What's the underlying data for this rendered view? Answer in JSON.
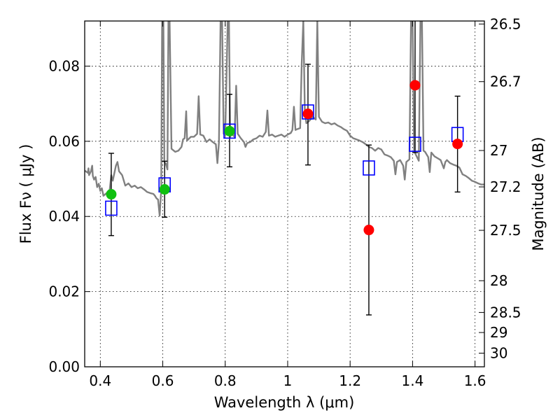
{
  "chart_data": {
    "type": "scatter",
    "title": "",
    "xlabel": "Wavelength  λ (μm)",
    "ylabel": "Flux  Fν  ( μJy )",
    "y2label": "Magnitude (AB)",
    "xlim": [
      0.35,
      1.63
    ],
    "ylim": [
      0.0,
      0.092
    ],
    "x_ticks": [
      0.4,
      0.6,
      0.8,
      1,
      1.2,
      1.4,
      1.6
    ],
    "x_tick_labels": [
      "0.4",
      "0.6",
      "0.8",
      "1",
      "1.2",
      "1.4",
      "1.6"
    ],
    "y_ticks": [
      0.0,
      0.02,
      0.04,
      0.06,
      0.08
    ],
    "y_tick_labels": [
      "0.00",
      "0.02",
      "0.04",
      "0.06",
      "0.08"
    ],
    "mag_ticks": [
      26.5,
      26.7,
      27,
      27.2,
      27.5,
      28,
      28.5,
      29,
      30
    ],
    "mag_tick_labels": [
      "26.5",
      "26.7",
      "27",
      "27.2",
      "27.5",
      "28",
      "28.5",
      "29",
      "30"
    ],
    "grid": true,
    "colors": {
      "model": "#808080",
      "observed_green": "#10c010",
      "observed_red": "#ff0000",
      "model_photometry": "#0000ff",
      "errorbar": "#000000"
    },
    "observed_points": [
      {
        "x": 0.435,
        "y": 0.0459,
        "yerr_low": 0.0349,
        "yerr_high": 0.0568,
        "color": "green"
      },
      {
        "x": 0.606,
        "y": 0.0472,
        "yerr_low": 0.0398,
        "yerr_high": 0.0547,
        "color": "green"
      },
      {
        "x": 0.814,
        "y": 0.0627,
        "yerr_low": 0.0532,
        "yerr_high": 0.0725,
        "color": "green"
      },
      {
        "x": 1.065,
        "y": 0.0673,
        "yerr_low": 0.0537,
        "yerr_high": 0.0805,
        "color": "red"
      },
      {
        "x": 1.26,
        "y": 0.0364,
        "yerr_low": 0.0138,
        "yerr_high": 0.059,
        "color": "red"
      },
      {
        "x": 1.408,
        "y": 0.0749,
        "yerr_low": 0.057,
        "yerr_high": 0.095,
        "color": "red"
      },
      {
        "x": 1.544,
        "y": 0.0593,
        "yerr_low": 0.0465,
        "yerr_high": 0.072,
        "color": "red"
      }
    ],
    "model_photometry": [
      {
        "x": 0.435,
        "y": 0.0422
      },
      {
        "x": 0.606,
        "y": 0.0484
      },
      {
        "x": 0.814,
        "y": 0.0627
      },
      {
        "x": 1.065,
        "y": 0.0678
      },
      {
        "x": 1.26,
        "y": 0.0529
      },
      {
        "x": 1.408,
        "y": 0.0592
      },
      {
        "x": 1.544,
        "y": 0.0618
      }
    ],
    "model_spectrum": [
      [
        0.35,
        0.0522
      ],
      [
        0.36,
        0.0516
      ],
      [
        0.362,
        0.0528
      ],
      [
        0.364,
        0.051
      ],
      [
        0.37,
        0.052
      ],
      [
        0.374,
        0.0535
      ],
      [
        0.376,
        0.0508
      ],
      [
        0.38,
        0.0498
      ],
      [
        0.385,
        0.0505
      ],
      [
        0.39,
        0.0478
      ],
      [
        0.395,
        0.0487
      ],
      [
        0.4,
        0.0468
      ],
      [
        0.405,
        0.0475
      ],
      [
        0.41,
        0.0455
      ],
      [
        0.42,
        0.0462
      ],
      [
        0.425,
        0.0453
      ],
      [
        0.43,
        0.047
      ],
      [
        0.435,
        0.051
      ],
      [
        0.44,
        0.0495
      ],
      [
        0.45,
        0.0535
      ],
      [
        0.455,
        0.0545
      ],
      [
        0.46,
        0.052
      ],
      [
        0.47,
        0.051
      ],
      [
        0.48,
        0.0482
      ],
      [
        0.49,
        0.0488
      ],
      [
        0.5,
        0.0478
      ],
      [
        0.51,
        0.0482
      ],
      [
        0.52,
        0.0475
      ],
      [
        0.53,
        0.0478
      ],
      [
        0.54,
        0.0472
      ],
      [
        0.55,
        0.0465
      ],
      [
        0.56,
        0.0462
      ],
      [
        0.57,
        0.046
      ],
      [
        0.575,
        0.0455
      ],
      [
        0.58,
        0.0448
      ],
      [
        0.585,
        0.0445
      ],
      [
        0.59,
        0.0402
      ],
      [
        0.595,
        0.047
      ],
      [
        0.598,
        0.092
      ],
      [
        0.602,
        0.092
      ],
      [
        0.605,
        0.0545
      ],
      [
        0.61,
        0.054
      ],
      [
        0.615,
        0.0525
      ],
      [
        0.618,
        0.092
      ],
      [
        0.622,
        0.092
      ],
      [
        0.628,
        0.058
      ],
      [
        0.64,
        0.0572
      ],
      [
        0.65,
        0.0575
      ],
      [
        0.66,
        0.0585
      ],
      [
        0.665,
        0.0605
      ],
      [
        0.67,
        0.0608
      ],
      [
        0.675,
        0.068
      ],
      [
        0.678,
        0.0602
      ],
      [
        0.69,
        0.0612
      ],
      [
        0.7,
        0.0612
      ],
      [
        0.71,
        0.062
      ],
      [
        0.715,
        0.072
      ],
      [
        0.72,
        0.0618
      ],
      [
        0.73,
        0.0615
      ],
      [
        0.74,
        0.0598
      ],
      [
        0.75,
        0.0605
      ],
      [
        0.76,
        0.0598
      ],
      [
        0.77,
        0.0592
      ],
      [
        0.775,
        0.0542
      ],
      [
        0.78,
        0.0598
      ],
      [
        0.785,
        0.092
      ],
      [
        0.79,
        0.092
      ],
      [
        0.795,
        0.062
      ],
      [
        0.8,
        0.0615
      ],
      [
        0.808,
        0.092
      ],
      [
        0.812,
        0.092
      ],
      [
        0.816,
        0.0612
      ],
      [
        0.82,
        0.062
      ],
      [
        0.83,
        0.0612
      ],
      [
        0.835,
        0.0748
      ],
      [
        0.84,
        0.062
      ],
      [
        0.85,
        0.0608
      ],
      [
        0.86,
        0.0598
      ],
      [
        0.865,
        0.0585
      ],
      [
        0.87,
        0.0595
      ],
      [
        0.88,
        0.0598
      ],
      [
        0.89,
        0.0605
      ],
      [
        0.9,
        0.0608
      ],
      [
        0.91,
        0.0615
      ],
      [
        0.92,
        0.0612
      ],
      [
        0.93,
        0.0625
      ],
      [
        0.935,
        0.0682
      ],
      [
        0.94,
        0.0615
      ],
      [
        0.95,
        0.0618
      ],
      [
        0.96,
        0.0612
      ],
      [
        0.97,
        0.0615
      ],
      [
        0.98,
        0.0618
      ],
      [
        0.99,
        0.0612
      ],
      [
        1.0,
        0.0618
      ],
      [
        1.01,
        0.0622
      ],
      [
        1.015,
        0.063
      ],
      [
        1.02,
        0.0692
      ],
      [
        1.025,
        0.063
      ],
      [
        1.03,
        0.0632
      ],
      [
        1.04,
        0.0635
      ],
      [
        1.045,
        0.0805
      ],
      [
        1.05,
        0.092
      ],
      [
        1.055,
        0.068
      ],
      [
        1.06,
        0.0648
      ],
      [
        1.07,
        0.0655
      ],
      [
        1.08,
        0.0665
      ],
      [
        1.09,
        0.0658
      ],
      [
        1.095,
        0.092
      ],
      [
        1.1,
        0.0665
      ],
      [
        1.11,
        0.0652
      ],
      [
        1.12,
        0.0648
      ],
      [
        1.13,
        0.065
      ],
      [
        1.14,
        0.0645
      ],
      [
        1.15,
        0.0648
      ],
      [
        1.16,
        0.0642
      ],
      [
        1.17,
        0.0638
      ],
      [
        1.18,
        0.0632
      ],
      [
        1.19,
        0.0628
      ],
      [
        1.2,
        0.0615
      ],
      [
        1.21,
        0.0608
      ],
      [
        1.22,
        0.0605
      ],
      [
        1.23,
        0.0602
      ],
      [
        1.24,
        0.0598
      ],
      [
        1.25,
        0.0592
      ],
      [
        1.26,
        0.0585
      ],
      [
        1.27,
        0.0582
      ],
      [
        1.28,
        0.0575
      ],
      [
        1.29,
        0.0582
      ],
      [
        1.3,
        0.0578
      ],
      [
        1.31,
        0.0565
      ],
      [
        1.32,
        0.0562
      ],
      [
        1.33,
        0.0558
      ],
      [
        1.34,
        0.0548
      ],
      [
        1.345,
        0.0512
      ],
      [
        1.35,
        0.0545
      ],
      [
        1.36,
        0.055
      ],
      [
        1.37,
        0.0535
      ],
      [
        1.375,
        0.0498
      ],
      [
        1.38,
        0.0545
      ],
      [
        1.39,
        0.0552
      ],
      [
        1.395,
        0.092
      ],
      [
        1.4,
        0.092
      ],
      [
        1.405,
        0.0575
      ],
      [
        1.41,
        0.0565
      ],
      [
        1.42,
        0.0548
      ],
      [
        1.425,
        0.092
      ],
      [
        1.43,
        0.092
      ],
      [
        1.435,
        0.0575
      ],
      [
        1.44,
        0.0572
      ],
      [
        1.45,
        0.0558
      ],
      [
        1.455,
        0.0518
      ],
      [
        1.46,
        0.057
      ],
      [
        1.47,
        0.056
      ],
      [
        1.48,
        0.0555
      ],
      [
        1.49,
        0.055
      ],
      [
        1.5,
        0.0528
      ],
      [
        1.505,
        0.0545
      ],
      [
        1.51,
        0.055
      ],
      [
        1.52,
        0.0542
      ],
      [
        1.53,
        0.0538
      ],
      [
        1.54,
        0.0535
      ],
      [
        1.55,
        0.053
      ],
      [
        1.56,
        0.0512
      ],
      [
        1.57,
        0.0508
      ],
      [
        1.58,
        0.0502
      ],
      [
        1.59,
        0.0495
      ],
      [
        1.6,
        0.0492
      ],
      [
        1.61,
        0.0488
      ],
      [
        1.62,
        0.0485
      ],
      [
        1.63,
        0.0485
      ]
    ]
  }
}
